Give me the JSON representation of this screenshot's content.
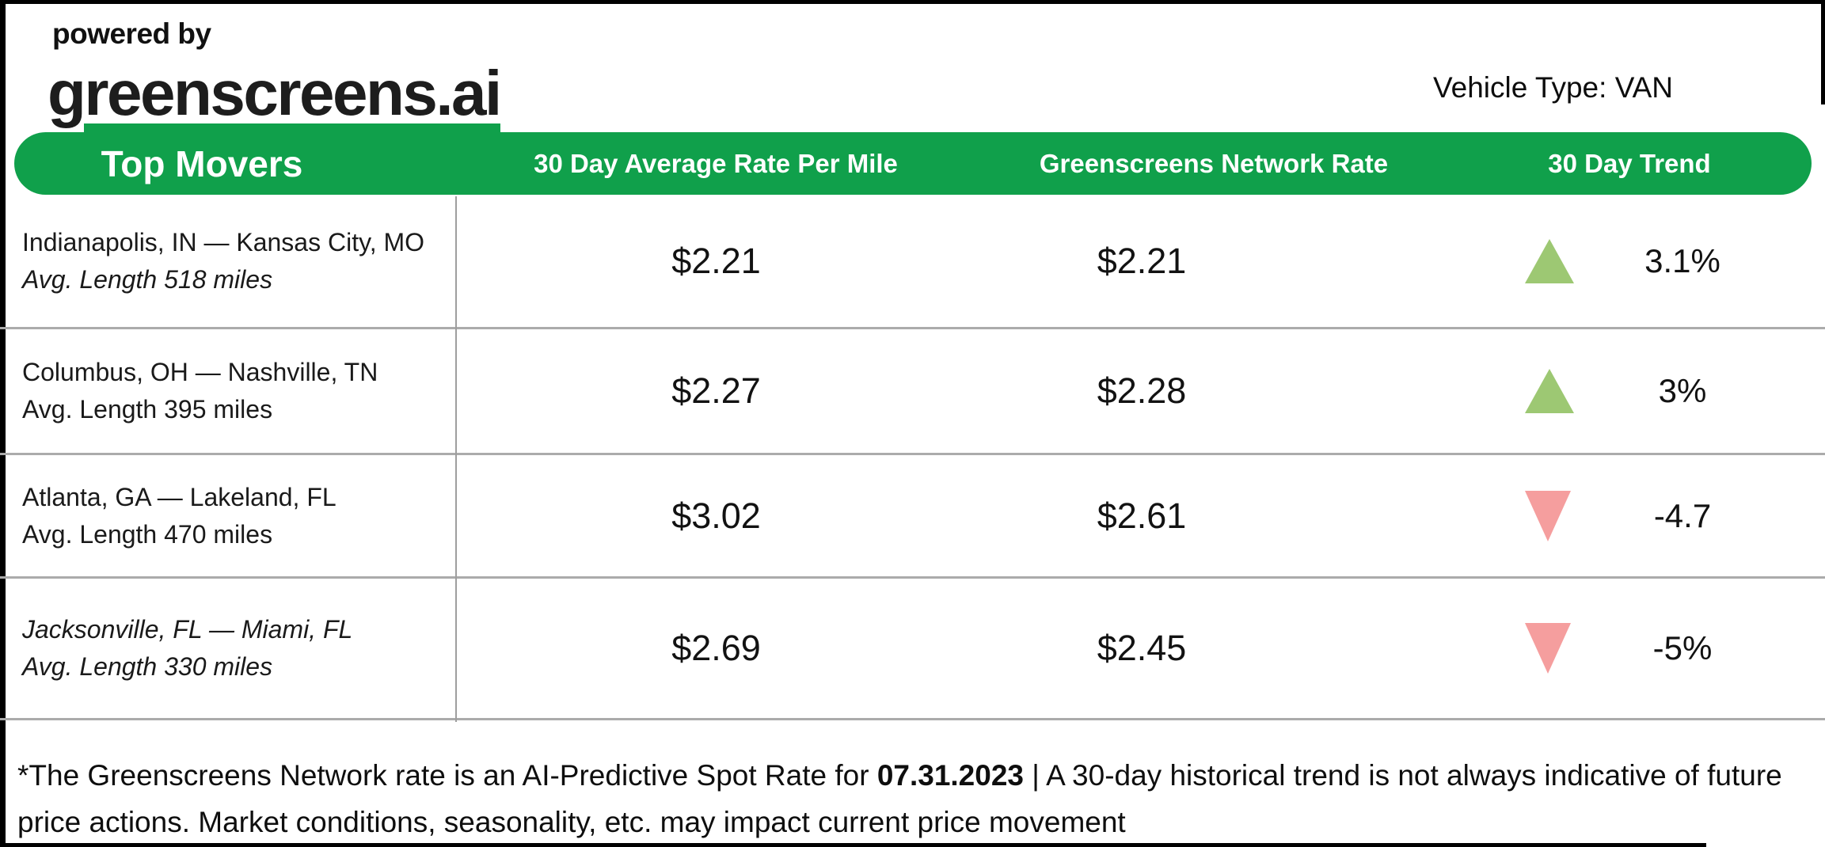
{
  "colors": {
    "brand-green": "#10A04B",
    "trend-up": "#9DC873",
    "trend-down": "#F59E9E",
    "row-line": "#ABABAB",
    "divider": "#9E9E9E",
    "frame": "#000000"
  },
  "logo": {
    "powered_by": "powered by",
    "brand": "greenscreens.ai"
  },
  "meta": {
    "vehicle_type": "Vehicle Type: VAN"
  },
  "chart_data": {
    "type": "table",
    "title": "Top Movers",
    "columns": [
      "Top Movers",
      "30 Day Average Rate Per Mile",
      "Greenscreens Network Rate",
      "30 Day Trend"
    ],
    "rows": [
      {
        "lane": "Indianapolis, IN — Kansas City, MO",
        "length": "Avg. Length 518 miles",
        "avg_rate": "$2.21",
        "network_rate": "$2.21",
        "trend_direction": "up",
        "trend_value": "3.1%"
      },
      {
        "lane": "Columbus, OH — Nashville, TN",
        "length": "Avg. Length 395 miles",
        "avg_rate": "$2.27",
        "network_rate": "$2.28",
        "trend_direction": "up",
        "trend_value": "3%"
      },
      {
        "lane": "Atlanta, GA — Lakeland, FL",
        "length": "Avg. Length 470 miles",
        "avg_rate": "$3.02",
        "network_rate": "$2.61",
        "trend_direction": "down",
        "trend_value": "-4.7"
      },
      {
        "lane": "Jacksonville, FL — Miami, FL",
        "length": "Avg. Length 330 miles",
        "avg_rate": "$2.69",
        "network_rate": "$2.45",
        "trend_direction": "down",
        "trend_value": "-5%"
      }
    ]
  },
  "footer": {
    "text_before_date": "*The Greenscreens Network rate is an AI-Predictive Spot Rate for ",
    "date": "07.31.2023",
    "text_after_date": " | A 30-day historical trend is not always indicative of future price actions. Market conditions, seasonality, etc. may impact current price movement"
  }
}
